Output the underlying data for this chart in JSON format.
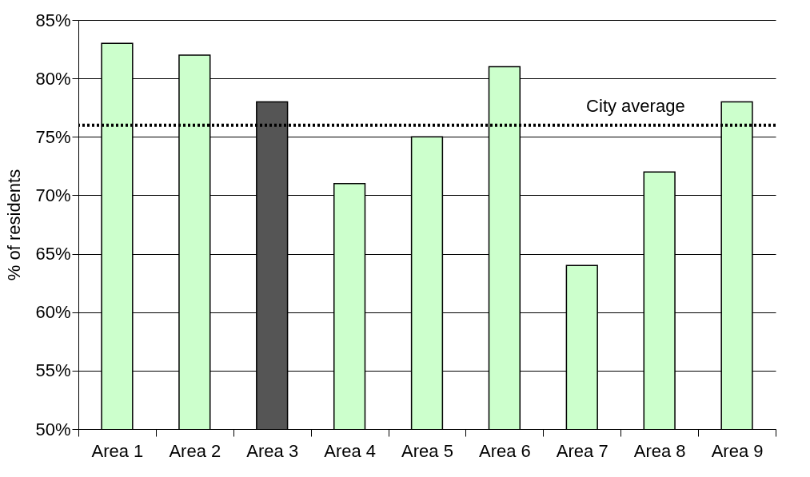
{
  "chart_data": {
    "type": "bar",
    "ylabel": "% of residents",
    "categories": [
      "Area 1",
      "Area 2",
      "Area 3",
      "Area 4",
      "Area 5",
      "Area 6",
      "Area 7",
      "Area 8",
      "Area 9"
    ],
    "values": [
      83,
      82,
      78,
      71,
      75,
      81,
      64,
      72,
      78
    ],
    "colors": [
      "#ccffcc",
      "#ccffcc",
      "#555555",
      "#ccffcc",
      "#ccffcc",
      "#ccffcc",
      "#ccffcc",
      "#ccffcc",
      "#ccffcc"
    ],
    "ylim": [
      50,
      85
    ],
    "yticks": [
      {
        "value": 50,
        "label": "50%"
      },
      {
        "value": 55,
        "label": "55%"
      },
      {
        "value": 60,
        "label": "60%"
      },
      {
        "value": 65,
        "label": "65%"
      },
      {
        "value": 70,
        "label": "70%"
      },
      {
        "value": 75,
        "label": "75%"
      },
      {
        "value": 80,
        "label": "80%"
      },
      {
        "value": 85,
        "label": "85%"
      }
    ],
    "grid": "y",
    "ref_lines": [
      {
        "axis": "y",
        "value": 76,
        "label": "City average",
        "color": "#000000",
        "line_style": "dotted"
      }
    ]
  }
}
